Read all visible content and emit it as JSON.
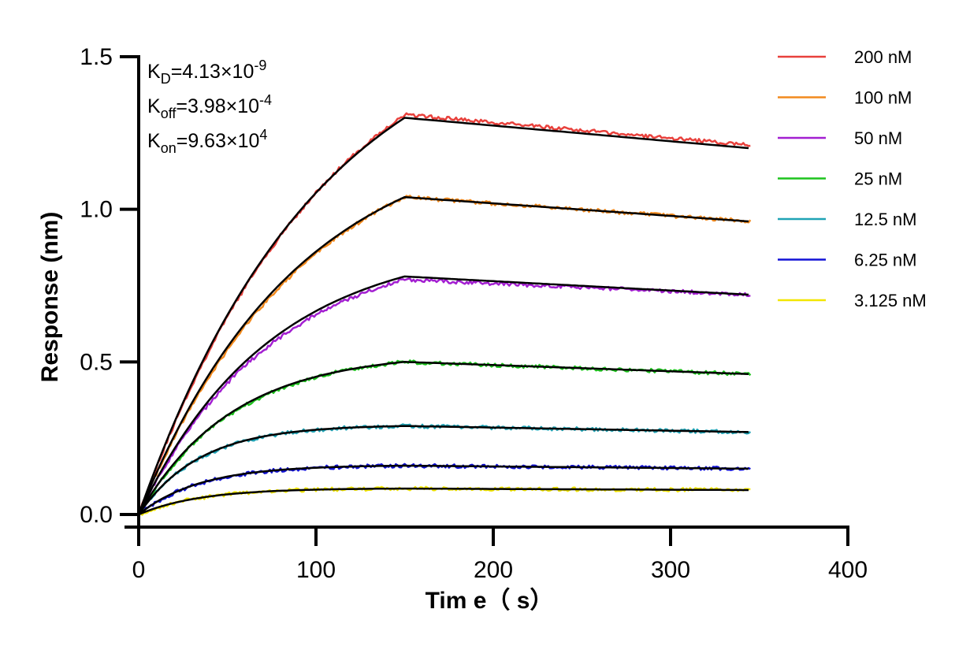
{
  "chart_data": {
    "type": "line",
    "xlabel": "Tim e（ s）",
    "ylabel": "Response (nm)",
    "xlim": [
      0,
      400
    ],
    "ylim": [
      0,
      1.5
    ],
    "xticks": [
      "0",
      "100",
      "200",
      "300",
      "400"
    ],
    "yticks": [
      "0.0",
      "0.5",
      "1.0",
      "1.5"
    ],
    "association_end": 150,
    "dissociation_end": 345,
    "annotations": [
      {
        "base": "K",
        "sub": "D",
        "value": "=4.13×10",
        "exp": "-9"
      },
      {
        "base": "K",
        "sub": "off",
        "value": "=3.98×10",
        "exp": "-4"
      },
      {
        "base": "K",
        "sub": "on",
        "value": "=9.63×10",
        "exp": "4"
      }
    ],
    "legend_position": "right",
    "grid": false,
    "fit_color": "#000000",
    "series": [
      {
        "name": "200 nM",
        "color": "#E8413C",
        "plateau": 1.3,
        "end": 1.2,
        "measured_plateau": 1.31,
        "measured_end": 1.21
      },
      {
        "name": "100 nM",
        "color": "#F28A1E",
        "plateau": 1.04,
        "end": 0.96,
        "measured_plateau": 1.04,
        "measured_end": 0.96
      },
      {
        "name": "50 nM",
        "color": "#A31FD1",
        "plateau": 0.78,
        "end": 0.72,
        "measured_plateau": 0.77,
        "measured_end": 0.72
      },
      {
        "name": "25 nM",
        "color": "#1DC41D",
        "plateau": 0.5,
        "end": 0.46,
        "measured_plateau": 0.5,
        "measured_end": 0.46
      },
      {
        "name": "12.5 nM",
        "color": "#1FA3B5",
        "plateau": 0.29,
        "end": 0.27,
        "measured_plateau": 0.29,
        "measured_end": 0.27
      },
      {
        "name": "6.25 nM",
        "color": "#1212D6",
        "plateau": 0.16,
        "end": 0.15,
        "measured_plateau": 0.16,
        "measured_end": 0.15
      },
      {
        "name": "3.125 nM",
        "color": "#F2E600",
        "plateau": 0.085,
        "end": 0.08,
        "measured_plateau": 0.085,
        "measured_end": 0.08
      }
    ]
  }
}
